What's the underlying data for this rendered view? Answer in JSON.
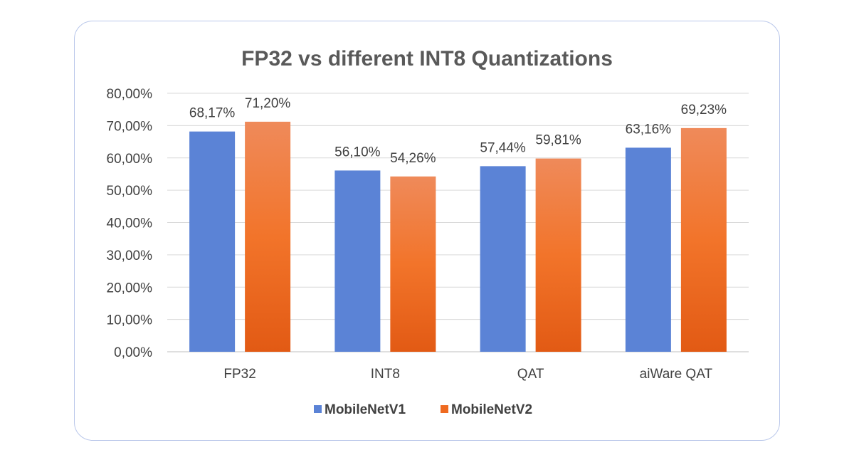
{
  "chart_data": {
    "type": "bar",
    "title": "FP32 vs different INT8 Quantizations",
    "categories": [
      "FP32",
      "INT8",
      "QAT",
      "aiWare QAT"
    ],
    "series": [
      {
        "name": "MobileNetV1",
        "values": [
          68.17,
          56.1,
          57.44,
          63.16
        ],
        "labels": [
          "68,17%",
          "56,10%",
          "57,44%",
          "63,16%"
        ],
        "color": "#5b83d6"
      },
      {
        "name": "MobileNetV2",
        "values": [
          71.2,
          54.26,
          59.81,
          69.23
        ],
        "labels": [
          "71,20%",
          "54,26%",
          "59,81%",
          "69,23%"
        ],
        "color": "#ef6a20"
      }
    ],
    "ylim": [
      0,
      80
    ],
    "yticks": [
      0,
      10,
      20,
      30,
      40,
      50,
      60,
      70,
      80
    ],
    "ytick_labels": [
      "0,00%",
      "10,00%",
      "20,00%",
      "30,00%",
      "40,00%",
      "50,00%",
      "60,00%",
      "70,00%",
      "80,00%"
    ],
    "grid": true,
    "legend_position": "bottom"
  }
}
